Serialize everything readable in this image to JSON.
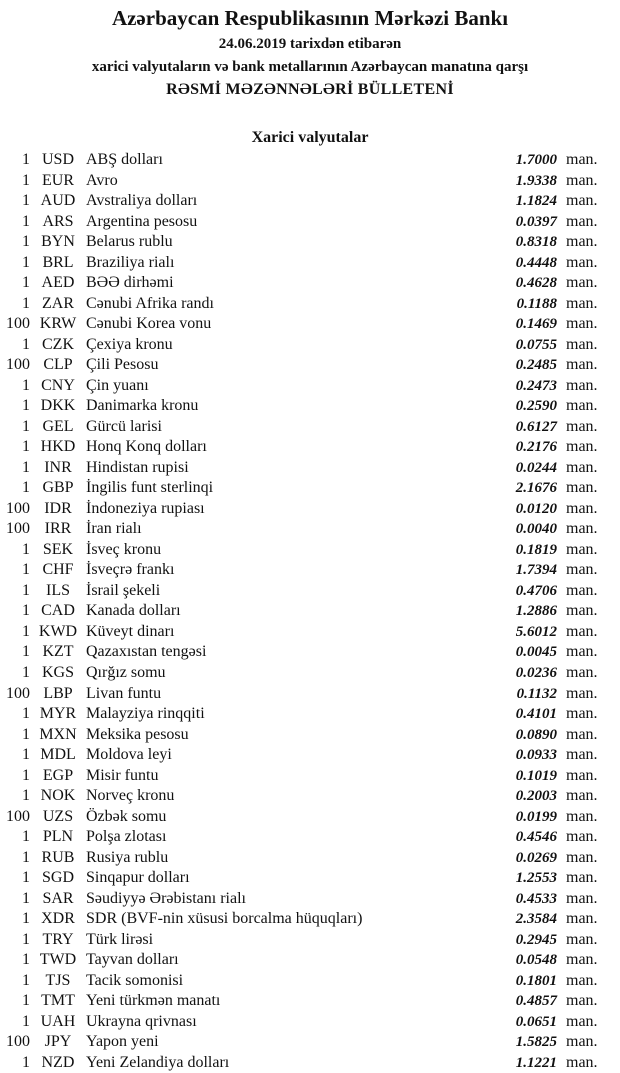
{
  "header": {
    "bank": "Azərbaycan Respublikasının Mərkəzi Bankı",
    "date_line": "24.06.2019  tarixdən etibarən",
    "subtitle": "xarici valyutaların və bank metallarının Azərbaycan manatına qarşı",
    "bulletin": "RƏSMİ MƏZƏNNƏLƏRİ BÜLLETENİ",
    "section": "Xarici valyutalar"
  },
  "unit": "man.",
  "rates": [
    {
      "nominal": "1",
      "code": "USD",
      "name": "ABŞ dolları",
      "value": "1.7000"
    },
    {
      "nominal": "1",
      "code": "EUR",
      "name": "Avro",
      "value": "1.9338"
    },
    {
      "nominal": "1",
      "code": "AUD",
      "name": "Avstraliya dolları",
      "value": "1.1824"
    },
    {
      "nominal": "1",
      "code": "ARS",
      "name": "Argentina pesosu",
      "value": "0.0397"
    },
    {
      "nominal": "1",
      "code": "BYN",
      "name": "Belarus rublu",
      "value": "0.8318"
    },
    {
      "nominal": "1",
      "code": "BRL",
      "name": "Braziliya rialı",
      "value": "0.4448"
    },
    {
      "nominal": "1",
      "code": "AED",
      "name": "BƏƏ dirhəmi",
      "value": "0.4628"
    },
    {
      "nominal": "1",
      "code": "ZAR",
      "name": "Cənubi Afrika randı",
      "value": "0.1188"
    },
    {
      "nominal": "100",
      "code": "KRW",
      "name": "Cənubi Korea vonu",
      "value": "0.1469"
    },
    {
      "nominal": "1",
      "code": "CZK",
      "name": "Çexiya kronu",
      "value": "0.0755"
    },
    {
      "nominal": "100",
      "code": "CLP",
      "name": "Çili Pesosu",
      "value": "0.2485"
    },
    {
      "nominal": "1",
      "code": "CNY",
      "name": "Çin yuanı",
      "value": "0.2473"
    },
    {
      "nominal": "1",
      "code": "DKK",
      "name": "Danimarka kronu",
      "value": "0.2590"
    },
    {
      "nominal": "1",
      "code": "GEL",
      "name": "Gürcü larisi",
      "value": "0.6127"
    },
    {
      "nominal": "1",
      "code": "HKD",
      "name": "Honq Konq dolları",
      "value": "0.2176"
    },
    {
      "nominal": "1",
      "code": "INR",
      "name": "Hindistan rupisi",
      "value": "0.0244"
    },
    {
      "nominal": "1",
      "code": "GBP",
      "name": "İngilis funt sterlinqi",
      "value": "2.1676"
    },
    {
      "nominal": "100",
      "code": "IDR",
      "name": "İndoneziya rupiası",
      "value": "0.0120"
    },
    {
      "nominal": "100",
      "code": "IRR",
      "name": "İran rialı",
      "value": "0.0040"
    },
    {
      "nominal": "1",
      "code": "SEK",
      "name": "İsveç kronu",
      "value": "0.1819"
    },
    {
      "nominal": "1",
      "code": "CHF",
      "name": "İsveçrə frankı",
      "value": "1.7394"
    },
    {
      "nominal": "1",
      "code": "ILS",
      "name": "İsrail şekeli",
      "value": "0.4706"
    },
    {
      "nominal": "1",
      "code": "CAD",
      "name": "Kanada dolları",
      "value": "1.2886"
    },
    {
      "nominal": "1",
      "code": "KWD",
      "name": "Küveyt dinarı",
      "value": "5.6012"
    },
    {
      "nominal": "1",
      "code": "KZT",
      "name": "Qazaxıstan tengəsi",
      "value": "0.0045"
    },
    {
      "nominal": "1",
      "code": "KGS",
      "name": "Qırğız somu",
      "value": "0.0236"
    },
    {
      "nominal": "100",
      "code": "LBP",
      "name": "Livan funtu",
      "value": "0.1132"
    },
    {
      "nominal": "1",
      "code": "MYR",
      "name": "Malayziya rinqqiti",
      "value": "0.4101"
    },
    {
      "nominal": "1",
      "code": "MXN",
      "name": "Meksika pesosu",
      "value": "0.0890"
    },
    {
      "nominal": "1",
      "code": "MDL",
      "name": "Moldova leyi",
      "value": "0.0933"
    },
    {
      "nominal": "1",
      "code": "EGP",
      "name": "Misir funtu",
      "value": "0.1019"
    },
    {
      "nominal": "1",
      "code": "NOK",
      "name": "Norveç kronu",
      "value": "0.2003"
    },
    {
      "nominal": "100",
      "code": "UZS",
      "name": "Özbək somu",
      "value": "0.0199"
    },
    {
      "nominal": "1",
      "code": "PLN",
      "name": "Polşa zlotası",
      "value": "0.4546"
    },
    {
      "nominal": "1",
      "code": "RUB",
      "name": "Rusiya rublu",
      "value": "0.0269"
    },
    {
      "nominal": "1",
      "code": "SGD",
      "name": "Sinqapur dolları",
      "value": "1.2553"
    },
    {
      "nominal": "1",
      "code": "SAR",
      "name": "Səudiyyə Ərəbistanı rialı",
      "value": "0.4533"
    },
    {
      "nominal": "1",
      "code": "XDR",
      "name": "SDR (BVF-nin xüsusi borcalma hüquqları)",
      "value": "2.3584"
    },
    {
      "nominal": "1",
      "code": "TRY",
      "name": "Türk lirəsi",
      "value": "0.2945"
    },
    {
      "nominal": "1",
      "code": "TWD",
      "name": "Tayvan dolları",
      "value": "0.0548"
    },
    {
      "nominal": "1",
      "code": "TJS",
      "name": "Tacik somonisi",
      "value": "0.1801"
    },
    {
      "nominal": "1",
      "code": "TMT",
      "name": "Yeni türkmən manatı",
      "value": "0.4857"
    },
    {
      "nominal": "1",
      "code": "UAH",
      "name": "Ukrayna qrivnası",
      "value": "0.0651"
    },
    {
      "nominal": "100",
      "code": "JPY",
      "name": "Yapon yeni",
      "value": "1.5825"
    },
    {
      "nominal": "1",
      "code": "NZD",
      "name": "Yeni Zelandiya dolları",
      "value": "1.1221"
    }
  ]
}
